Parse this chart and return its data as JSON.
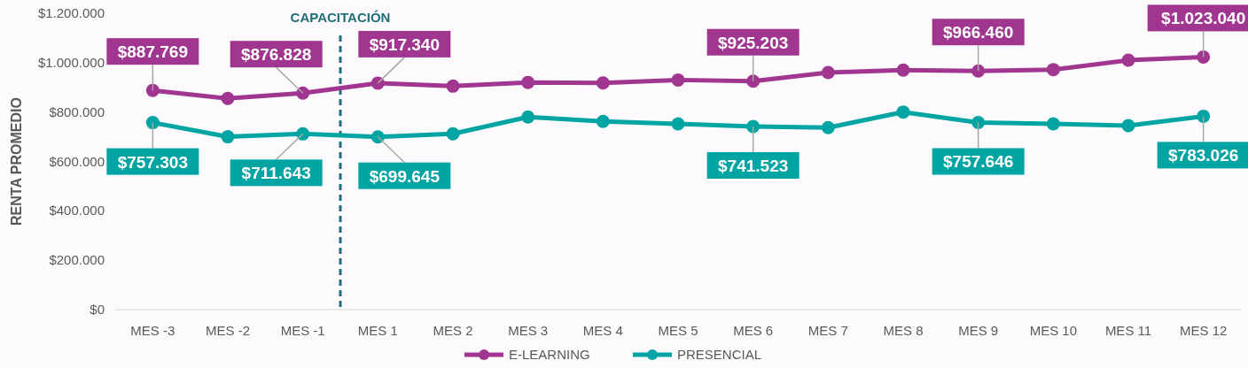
{
  "chart_data": {
    "type": "line",
    "ylabel": "RENTA PROMEDIO",
    "categories": [
      "MES -3",
      "MES -2",
      "MES -1",
      "MES 1",
      "MES 2",
      "MES 3",
      "MES 4",
      "MES 5",
      "MES 6",
      "MES 7",
      "MES 8",
      "MES 9",
      "MES 10",
      "MES 11",
      "MES 12"
    ],
    "series": [
      {
        "name": "E-LEARNING",
        "color": "#a0368f",
        "values": [
          887769,
          855000,
          876828,
          917340,
          905000,
          920000,
          918000,
          930000,
          925203,
          960000,
          970000,
          966460,
          972000,
          1010000,
          1023040
        ],
        "value_labels": [
          "$887.769",
          null,
          "$876.828",
          "$917.340",
          null,
          null,
          null,
          null,
          "$925.203",
          null,
          null,
          "$966.460",
          null,
          null,
          "$1.023.040"
        ]
      },
      {
        "name": "PRESENCIAL",
        "color": "#00a5a3",
        "values": [
          757303,
          700000,
          711643,
          699645,
          712000,
          780000,
          762000,
          752000,
          741523,
          737000,
          800000,
          757646,
          752000,
          745000,
          783026
        ],
        "value_labels": [
          "$757.303",
          null,
          "$711.643",
          "$699.645",
          null,
          null,
          null,
          null,
          "$741.523",
          null,
          null,
          "$757.646",
          null,
          null,
          "$783.026"
        ]
      }
    ],
    "ylim": [
      0,
      1200000
    ],
    "yticks": [
      {
        "value": 0,
        "label": "$0"
      },
      {
        "value": 200000,
        "label": "$200.000"
      },
      {
        "value": 400000,
        "label": "$400.000"
      },
      {
        "value": 600000,
        "label": "$600.000"
      },
      {
        "value": 800000,
        "label": "$800.000"
      },
      {
        "value": 1000000,
        "label": "$1.000.000"
      },
      {
        "value": 1200000,
        "label": "$1.200.000"
      }
    ],
    "annotations": [
      "CAPACITACIÓN"
    ],
    "legend": "bottom",
    "marker": "circle",
    "line_style": "solid",
    "grid": false
  }
}
